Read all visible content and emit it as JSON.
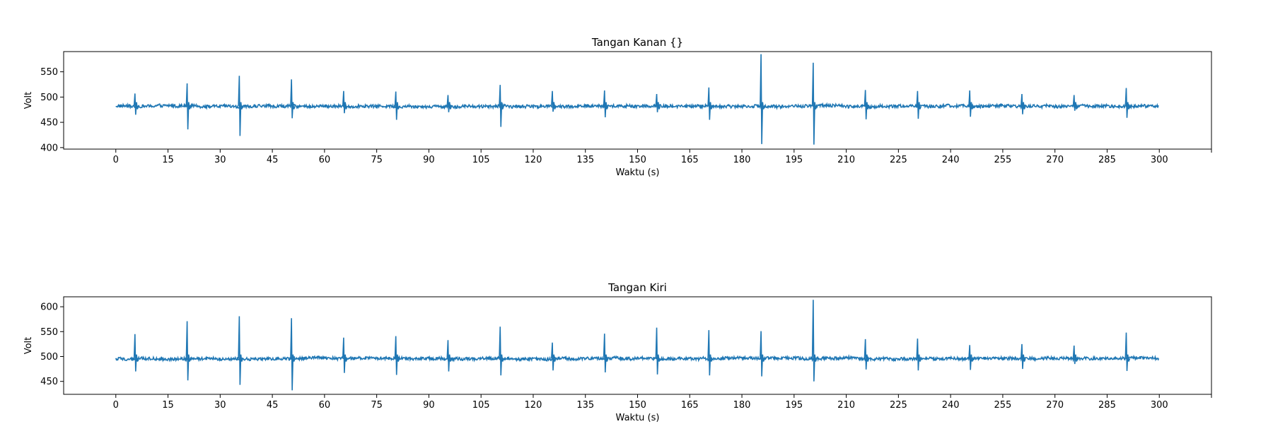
{
  "chart_data": [
    {
      "type": "line",
      "title": "Tangan Kanan {}",
      "xlabel": "Waktu (s)",
      "ylabel": "Volt",
      "xlim": [
        -15,
        315
      ],
      "ylim": [
        397,
        590
      ],
      "xticks": [
        0,
        15,
        30,
        45,
        60,
        75,
        90,
        105,
        120,
        135,
        150,
        165,
        180,
        195,
        210,
        225,
        240,
        255,
        270,
        285,
        300
      ],
      "yticks": [
        400,
        450,
        500,
        550
      ],
      "baseline": 482,
      "series": [
        {
          "color": "#1f77b4",
          "spikes": [
            {
              "t": 5.5,
              "max": 507,
              "min": 465
            },
            {
              "t": 20.5,
              "max": 527,
              "min": 436
            },
            {
              "t": 35.5,
              "max": 542,
              "min": 423
            },
            {
              "t": 50.5,
              "max": 535,
              "min": 458
            },
            {
              "t": 65.5,
              "max": 512,
              "min": 468
            },
            {
              "t": 80.5,
              "max": 511,
              "min": 455
            },
            {
              "t": 95.5,
              "max": 504,
              "min": 470
            },
            {
              "t": 110.5,
              "max": 524,
              "min": 441
            },
            {
              "t": 125.5,
              "max": 512,
              "min": 471
            },
            {
              "t": 140.5,
              "max": 513,
              "min": 460
            },
            {
              "t": 155.5,
              "max": 506,
              "min": 470
            },
            {
              "t": 170.5,
              "max": 519,
              "min": 455
            },
            {
              "t": 185.5,
              "max": 585,
              "min": 407
            },
            {
              "t": 200.5,
              "max": 568,
              "min": 406
            },
            {
              "t": 215.5,
              "max": 514,
              "min": 456
            },
            {
              "t": 230.5,
              "max": 512,
              "min": 457
            },
            {
              "t": 245.5,
              "max": 513,
              "min": 461
            },
            {
              "t": 260.5,
              "max": 506,
              "min": 466
            },
            {
              "t": 275.5,
              "max": 504,
              "min": 473
            },
            {
              "t": 290.5,
              "max": 518,
              "min": 459
            }
          ]
        }
      ]
    },
    {
      "type": "line",
      "title": "Tangan Kiri",
      "xlabel": "Waktu (s)",
      "ylabel": "Volt",
      "xlim": [
        -15,
        315
      ],
      "ylim": [
        424,
        620
      ],
      "xticks": [
        0,
        15,
        30,
        45,
        60,
        75,
        90,
        105,
        120,
        135,
        150,
        165,
        180,
        195,
        210,
        225,
        240,
        255,
        270,
        285,
        300
      ],
      "yticks": [
        450,
        500,
        550,
        600
      ],
      "baseline": 496,
      "series": [
        {
          "color": "#1f77b4",
          "spikes": [
            {
              "t": 5.5,
              "max": 545,
              "min": 470
            },
            {
              "t": 20.5,
              "max": 571,
              "min": 452
            },
            {
              "t": 35.5,
              "max": 581,
              "min": 443
            },
            {
              "t": 50.5,
              "max": 577,
              "min": 432
            },
            {
              "t": 65.5,
              "max": 538,
              "min": 467
            },
            {
              "t": 80.5,
              "max": 541,
              "min": 463
            },
            {
              "t": 95.5,
              "max": 533,
              "min": 470
            },
            {
              "t": 110.5,
              "max": 560,
              "min": 462
            },
            {
              "t": 125.5,
              "max": 528,
              "min": 472
            },
            {
              "t": 140.5,
              "max": 546,
              "min": 468
            },
            {
              "t": 155.5,
              "max": 558,
              "min": 464
            },
            {
              "t": 170.5,
              "max": 553,
              "min": 462
            },
            {
              "t": 185.5,
              "max": 551,
              "min": 460
            },
            {
              "t": 200.5,
              "max": 614,
              "min": 450
            },
            {
              "t": 215.5,
              "max": 535,
              "min": 474
            },
            {
              "t": 230.5,
              "max": 536,
              "min": 472
            },
            {
              "t": 245.5,
              "max": 523,
              "min": 473
            },
            {
              "t": 260.5,
              "max": 525,
              "min": 475
            },
            {
              "t": 275.5,
              "max": 522,
              "min": 485
            },
            {
              "t": 290.5,
              "max": 548,
              "min": 471
            }
          ]
        }
      ]
    }
  ]
}
